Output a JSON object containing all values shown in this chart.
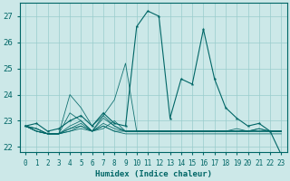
{
  "xlabel": "Humidex (Indice chaleur)",
  "bg_color": "#cce8e8",
  "grid_color": "#99cccc",
  "line_color": "#006666",
  "xlim": [
    -0.5,
    23.5
  ],
  "ylim": [
    21.8,
    27.5
  ],
  "yticks": [
    22,
    23,
    24,
    25,
    26,
    27
  ],
  "xticks": [
    0,
    1,
    2,
    3,
    4,
    5,
    6,
    7,
    8,
    9,
    10,
    11,
    12,
    13,
    14,
    15,
    16,
    17,
    18,
    19,
    20,
    21,
    22,
    23
  ],
  "main_series": [
    22.8,
    22.9,
    22.6,
    22.7,
    23.0,
    23.2,
    22.8,
    23.3,
    22.9,
    22.8,
    26.6,
    27.2,
    27.0,
    23.1,
    24.6,
    24.4,
    26.5,
    24.6,
    23.5,
    23.1,
    22.8,
    22.9,
    22.6,
    21.7
  ],
  "other_series": [
    [
      22.8,
      22.7,
      22.5,
      22.5,
      22.6,
      22.7,
      22.6,
      22.8,
      22.6,
      22.6,
      22.6,
      22.6,
      22.6,
      22.6,
      22.6,
      22.6,
      22.6,
      22.6,
      22.6,
      22.6,
      22.6,
      22.7,
      22.6,
      22.6
    ],
    [
      22.8,
      22.6,
      22.5,
      22.5,
      22.8,
      23.0,
      22.6,
      23.1,
      22.8,
      22.6,
      22.6,
      22.6,
      22.6,
      22.6,
      22.6,
      22.6,
      22.6,
      22.6,
      22.6,
      22.6,
      22.6,
      22.6,
      22.6,
      22.6
    ],
    [
      22.8,
      22.7,
      22.5,
      22.5,
      22.7,
      22.8,
      22.6,
      22.9,
      22.7,
      22.6,
      22.6,
      22.6,
      22.6,
      22.6,
      22.6,
      22.6,
      22.6,
      22.6,
      22.6,
      22.7,
      22.6,
      22.7,
      22.6,
      22.6
    ],
    [
      22.8,
      22.6,
      22.5,
      22.5,
      23.3,
      23.0,
      22.6,
      22.7,
      23.0,
      22.6,
      22.6,
      22.6,
      22.6,
      22.6,
      22.6,
      22.6,
      22.6,
      22.6,
      22.6,
      22.6,
      22.6,
      22.6,
      22.6,
      22.6
    ],
    [
      22.8,
      22.6,
      22.5,
      22.5,
      22.6,
      22.8,
      22.6,
      22.8,
      22.6,
      22.5,
      22.5,
      22.5,
      22.5,
      22.5,
      22.5,
      22.5,
      22.5,
      22.5,
      22.5,
      22.5,
      22.5,
      22.5,
      22.5,
      22.5
    ],
    [
      22.8,
      22.6,
      22.5,
      22.5,
      22.7,
      22.9,
      22.6,
      23.2,
      23.8,
      25.2,
      22.6,
      22.6,
      22.6,
      22.6,
      22.6,
      22.6,
      22.6,
      22.6,
      22.6,
      22.6,
      22.6,
      22.6,
      22.6,
      22.6
    ],
    [
      22.8,
      22.7,
      22.5,
      22.5,
      24.0,
      23.5,
      22.8,
      23.2,
      22.8,
      22.6,
      22.6,
      22.6,
      22.6,
      22.6,
      22.6,
      22.6,
      22.6,
      22.6,
      22.6,
      22.6,
      22.6,
      22.6,
      22.6,
      22.6
    ]
  ]
}
